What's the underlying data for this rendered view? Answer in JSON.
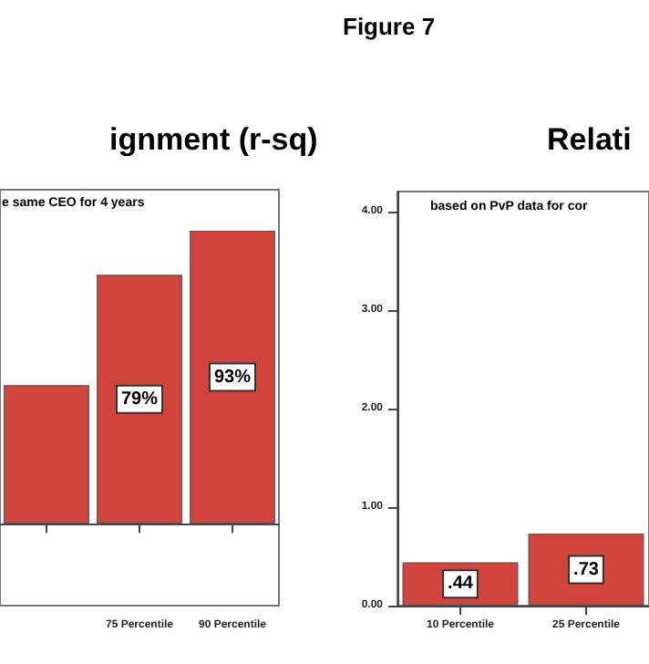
{
  "chart_data": [
    {
      "type": "bar",
      "title": "ignment (r-sq)",
      "subtitle": "e same CEO for 4 years",
      "annotations": [
        "Figure 7"
      ],
      "categories": [
        null,
        "75 Percentile",
        "90 Percentile"
      ],
      "values": [
        44,
        79,
        93
      ],
      "value_labels": [
        null,
        "79%",
        "93%"
      ],
      "color": "#d2453e",
      "ylim": [
        -26,
        106
      ],
      "tick_labels": "x",
      "grid": false
    },
    {
      "type": "bar",
      "title": "Relati",
      "subtitle": "based on PvP data for cor",
      "categories": [
        "10 Percentile",
        "25 Percentile"
      ],
      "values": [
        0.44,
        0.73
      ],
      "value_labels": [
        ".44",
        ".73"
      ],
      "color": "#d2453e",
      "ylim": [
        0,
        4.2
      ],
      "yticks": [
        {
          "value": 0,
          "label": "0.00"
        },
        {
          "value": 1,
          "label": "1.00"
        },
        {
          "value": 2,
          "label": "2.00"
        },
        {
          "value": 3,
          "label": "3.00"
        },
        {
          "value": 4,
          "label": "4.00"
        }
      ],
      "grid": false
    }
  ]
}
